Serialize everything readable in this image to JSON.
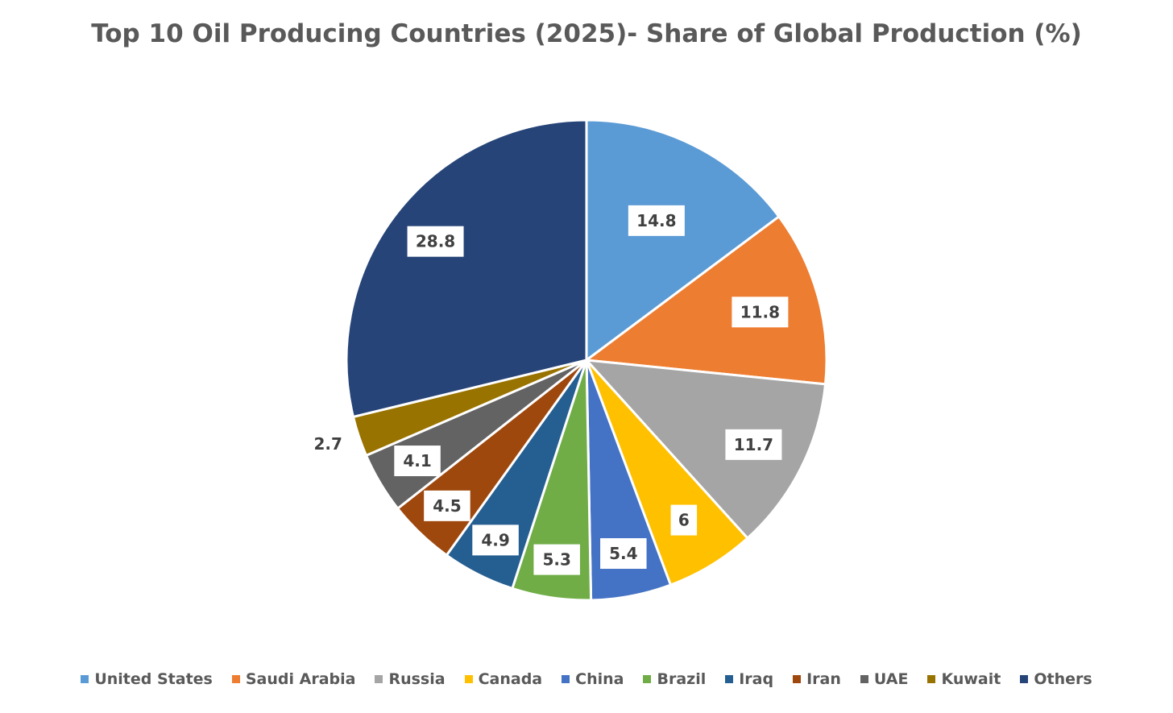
{
  "chart_data": {
    "type": "pie",
    "title": "Top 10 Oil Producing Countries (2025)- Share of Global Production (%)",
    "categories": [
      "United States",
      "Saudi Arabia",
      "Russia",
      "Canada",
      "China",
      "Brazil",
      "Iraq",
      "Iran",
      "UAE",
      "Kuwait",
      "Others"
    ],
    "values": [
      14.8,
      11.8,
      11.7,
      6,
      5.4,
      5.3,
      4.9,
      4.5,
      4.1,
      2.7,
      28.8
    ],
    "data_labels": [
      "14.8",
      "11.8",
      "11.7",
      "6",
      "5.4",
      "5.3",
      "4.9",
      "4.5",
      "4.1",
      "2.7",
      "28.8"
    ],
    "colors": [
      "#5B9BD5",
      "#ED7D31",
      "#A5A5A5",
      "#FFC000",
      "#4472C4",
      "#70AD47",
      "#255E91",
      "#9E480E",
      "#636363",
      "#997300",
      "#264478"
    ],
    "start_angle_deg": 0,
    "direction": "clockwise",
    "legend_position": "bottom"
  }
}
